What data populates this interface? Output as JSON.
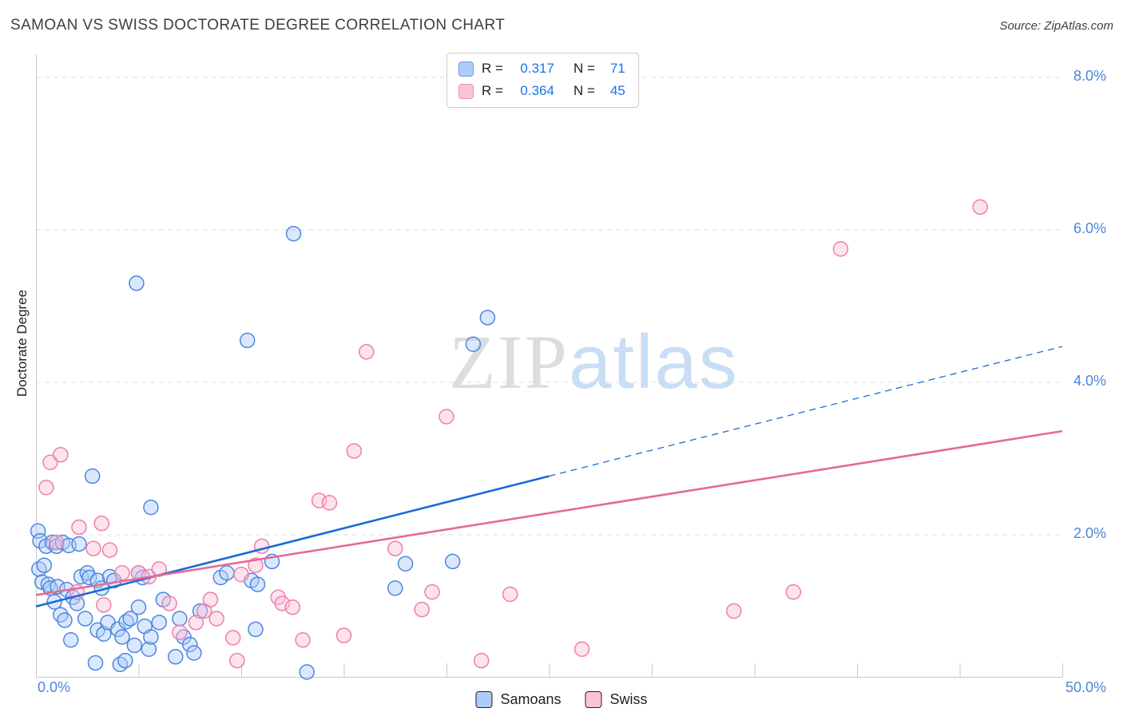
{
  "header": {
    "title": "SAMOAN VS SWISS DOCTORATE DEGREE CORRELATION CHART",
    "source": "Source: ZipAtlas.com"
  },
  "legend_box": {
    "series": [
      {
        "r_label": "R =",
        "r_value": "0.317",
        "n_label": "N =",
        "n_value": "71",
        "swatch_fill": "#aecbfa",
        "swatch_border": "#6d9eeb"
      },
      {
        "r_label": "R =",
        "r_value": "0.364",
        "n_label": "N =",
        "n_value": "45",
        "swatch_fill": "#fbc2d9",
        "swatch_border": "#f191b2"
      }
    ]
  },
  "watermark": {
    "zip": "ZIP",
    "atlas": "atlas"
  },
  "axes": {
    "y_label": "Doctorate Degree",
    "x_min_label": "0.0%",
    "x_max_label": "50.0%",
    "y_tick_labels": [
      "8.0%",
      "6.0%",
      "4.0%",
      "2.0%"
    ]
  },
  "bottom_legend": [
    {
      "label": "Samoans",
      "swatch_fill": "#aecbfa",
      "swatch_border": "#6d9eeb"
    },
    {
      "label": "Swiss",
      "swatch_fill": "#fbc2d9",
      "swatch_border": "#f191b2"
    }
  ],
  "chart_data": {
    "type": "scatter",
    "title": "SAMOAN VS SWISS DOCTORATE DEGREE CORRELATION CHART",
    "xlabel": "",
    "ylabel": "Doctorate Degree",
    "xlim": [
      0,
      50
    ],
    "ylim": [
      0,
      8.2
    ],
    "x_axis_ticks_pct": [
      5,
      10,
      15,
      20,
      25,
      30,
      35,
      40,
      45,
      50
    ],
    "y_gridlines_pct": [
      2,
      4,
      6,
      8
    ],
    "grid": "dashed-horizontal",
    "legend_position": "top-center",
    "series": [
      {
        "name": "Samoans",
        "R": 0.317,
        "N": 71,
        "fill": "#aecbfa",
        "stroke": "#4e86e0",
        "points": [
          [
            0.1,
            2.05
          ],
          [
            0.2,
            1.92
          ],
          [
            0.15,
            1.55
          ],
          [
            0.3,
            1.38
          ],
          [
            0.4,
            1.6
          ],
          [
            0.5,
            1.85
          ],
          [
            0.6,
            1.35
          ],
          [
            0.7,
            1.3
          ],
          [
            0.8,
            1.9
          ],
          [
            0.9,
            1.12
          ],
          [
            1.0,
            1.85
          ],
          [
            1.05,
            1.32
          ],
          [
            1.2,
            0.95
          ],
          [
            1.3,
            1.9
          ],
          [
            1.4,
            0.88
          ],
          [
            1.5,
            1.28
          ],
          [
            1.6,
            1.86
          ],
          [
            1.7,
            0.62
          ],
          [
            1.8,
            1.18
          ],
          [
            2.0,
            1.1
          ],
          [
            2.1,
            1.88
          ],
          [
            2.2,
            1.45
          ],
          [
            2.4,
            0.9
          ],
          [
            2.5,
            1.5
          ],
          [
            2.6,
            1.44
          ],
          [
            2.75,
            2.77
          ],
          [
            2.9,
            0.32
          ],
          [
            3.0,
            1.4
          ],
          [
            3.0,
            0.75
          ],
          [
            3.2,
            1.3
          ],
          [
            3.3,
            0.7
          ],
          [
            3.5,
            0.85
          ],
          [
            3.6,
            1.45
          ],
          [
            3.8,
            1.4
          ],
          [
            4.0,
            0.76
          ],
          [
            4.1,
            0.3
          ],
          [
            4.2,
            0.66
          ],
          [
            4.35,
            0.35
          ],
          [
            4.4,
            0.86
          ],
          [
            4.6,
            0.9
          ],
          [
            4.8,
            0.55
          ],
          [
            4.9,
            5.3
          ],
          [
            5.0,
            1.5
          ],
          [
            5.0,
            1.05
          ],
          [
            5.2,
            1.44
          ],
          [
            5.3,
            0.8
          ],
          [
            5.5,
            0.5
          ],
          [
            5.6,
            2.36
          ],
          [
            5.6,
            0.66
          ],
          [
            6.0,
            0.85
          ],
          [
            6.2,
            1.15
          ],
          [
            6.8,
            0.4
          ],
          [
            7.0,
            0.9
          ],
          [
            7.2,
            0.66
          ],
          [
            7.5,
            0.56
          ],
          [
            7.7,
            0.45
          ],
          [
            8.0,
            1.0
          ],
          [
            9.0,
            1.44
          ],
          [
            9.3,
            1.5
          ],
          [
            10.3,
            4.55
          ],
          [
            10.5,
            1.4
          ],
          [
            10.7,
            0.76
          ],
          [
            10.8,
            1.35
          ],
          [
            11.5,
            1.65
          ],
          [
            12.55,
            5.95
          ],
          [
            13.2,
            0.2
          ],
          [
            17.5,
            1.3
          ],
          [
            18.0,
            1.62
          ],
          [
            20.3,
            1.65
          ],
          [
            21.3,
            4.5
          ],
          [
            22.0,
            4.85
          ]
        ]
      },
      {
        "name": "Swiss",
        "R": 0.364,
        "N": 45,
        "fill": "#fbc2d9",
        "stroke": "#ee7fa9",
        "points": [
          [
            0.5,
            2.62
          ],
          [
            0.7,
            2.95
          ],
          [
            1.0,
            1.9
          ],
          [
            1.2,
            3.05
          ],
          [
            2.0,
            1.25
          ],
          [
            2.1,
            2.1
          ],
          [
            2.8,
            1.82
          ],
          [
            3.2,
            2.15
          ],
          [
            3.3,
            1.08
          ],
          [
            3.6,
            1.8
          ],
          [
            4.2,
            1.5
          ],
          [
            5.0,
            1.5
          ],
          [
            5.5,
            1.45
          ],
          [
            6.0,
            1.55
          ],
          [
            6.5,
            1.1
          ],
          [
            7.0,
            0.72
          ],
          [
            7.8,
            0.85
          ],
          [
            8.2,
            1.0
          ],
          [
            8.5,
            1.15
          ],
          [
            8.8,
            0.9
          ],
          [
            9.6,
            0.65
          ],
          [
            9.8,
            0.35
          ],
          [
            10.0,
            1.48
          ],
          [
            10.7,
            1.6
          ],
          [
            11.0,
            1.85
          ],
          [
            11.8,
            1.18
          ],
          [
            12.0,
            1.1
          ],
          [
            12.5,
            1.05
          ],
          [
            13.0,
            0.62
          ],
          [
            13.8,
            2.45
          ],
          [
            14.3,
            2.42
          ],
          [
            15.0,
            0.68
          ],
          [
            15.5,
            3.1
          ],
          [
            16.1,
            4.4
          ],
          [
            17.5,
            1.82
          ],
          [
            18.8,
            1.02
          ],
          [
            19.3,
            1.25
          ],
          [
            20.0,
            3.55
          ],
          [
            21.7,
            0.35
          ],
          [
            23.1,
            1.22
          ],
          [
            26.6,
            0.5
          ],
          [
            34.0,
            1.0
          ],
          [
            36.9,
            1.25
          ],
          [
            39.2,
            5.75
          ],
          [
            46.0,
            6.3
          ]
        ]
      }
    ],
    "trend_lines": [
      {
        "series": "Samoans",
        "color": "#1b6ad6",
        "solid": {
          "x1": 0,
          "y1": 1.06,
          "x2": 25,
          "y2": 2.77
        },
        "dashed": {
          "x1": 25,
          "y1": 2.77,
          "x2": 50,
          "y2": 4.47
        }
      },
      {
        "series": "Swiss",
        "color": "#e66a93",
        "solid": {
          "x1": 0,
          "y1": 1.21,
          "x2": 50,
          "y2": 3.36
        }
      }
    ]
  }
}
